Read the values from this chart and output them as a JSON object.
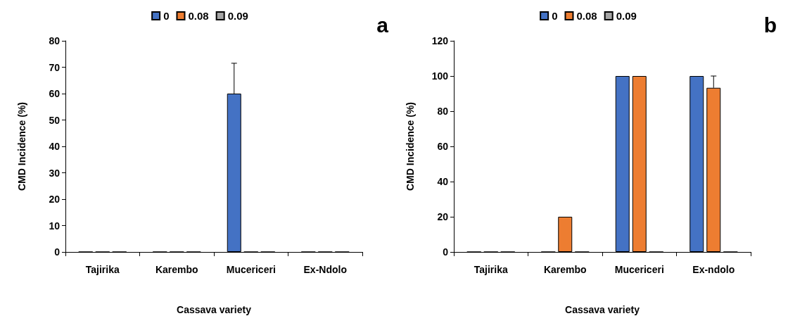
{
  "chart_data": [
    {
      "type": "bar",
      "categories": [
        "Tajirika",
        "Karembo",
        "Mucericeri",
        "Ex-Ndolo"
      ],
      "xlabel": "Cassava variety",
      "ylabel": "CMD Incidence (%)",
      "ylim": [
        0,
        80
      ],
      "yticks": [
        0,
        10,
        20,
        30,
        40,
        50,
        60,
        70,
        80
      ],
      "legend": "top",
      "grid": false,
      "annotations": [
        "a"
      ],
      "series": [
        {
          "name": "0",
          "color": "#4472c4",
          "values": [
            0,
            0,
            60,
            0
          ],
          "errors": [
            null,
            null,
            [
              60,
              71.5
            ],
            null
          ]
        },
        {
          "name": "0.08",
          "color": "#ed7d31",
          "values": [
            0,
            0,
            0,
            0
          ]
        },
        {
          "name": "0.09",
          "color": "#a5a5a5",
          "values": [
            0,
            0,
            0,
            0
          ]
        }
      ]
    },
    {
      "type": "bar",
      "categories": [
        "Tajirika",
        "Karembo",
        "Mucericeri",
        "Ex-ndolo"
      ],
      "xlabel": "Cassava variety",
      "ylabel": "CMD Incidence (%)",
      "ylim": [
        0,
        120
      ],
      "yticks": [
        0,
        20,
        40,
        60,
        80,
        100,
        120
      ],
      "legend": "top",
      "grid": false,
      "annotations": [
        "b"
      ],
      "series": [
        {
          "name": "0",
          "color": "#4472c4",
          "values": [
            0,
            0,
            100,
            100
          ]
        },
        {
          "name": "0.08",
          "color": "#ed7d31",
          "values": [
            0,
            20,
            100,
            93.3
          ],
          "errors": [
            null,
            null,
            null,
            [
              93.3,
              100
            ]
          ]
        },
        {
          "name": "0.09",
          "color": "#a5a5a5",
          "values": [
            0,
            0,
            0,
            0
          ]
        }
      ]
    }
  ]
}
